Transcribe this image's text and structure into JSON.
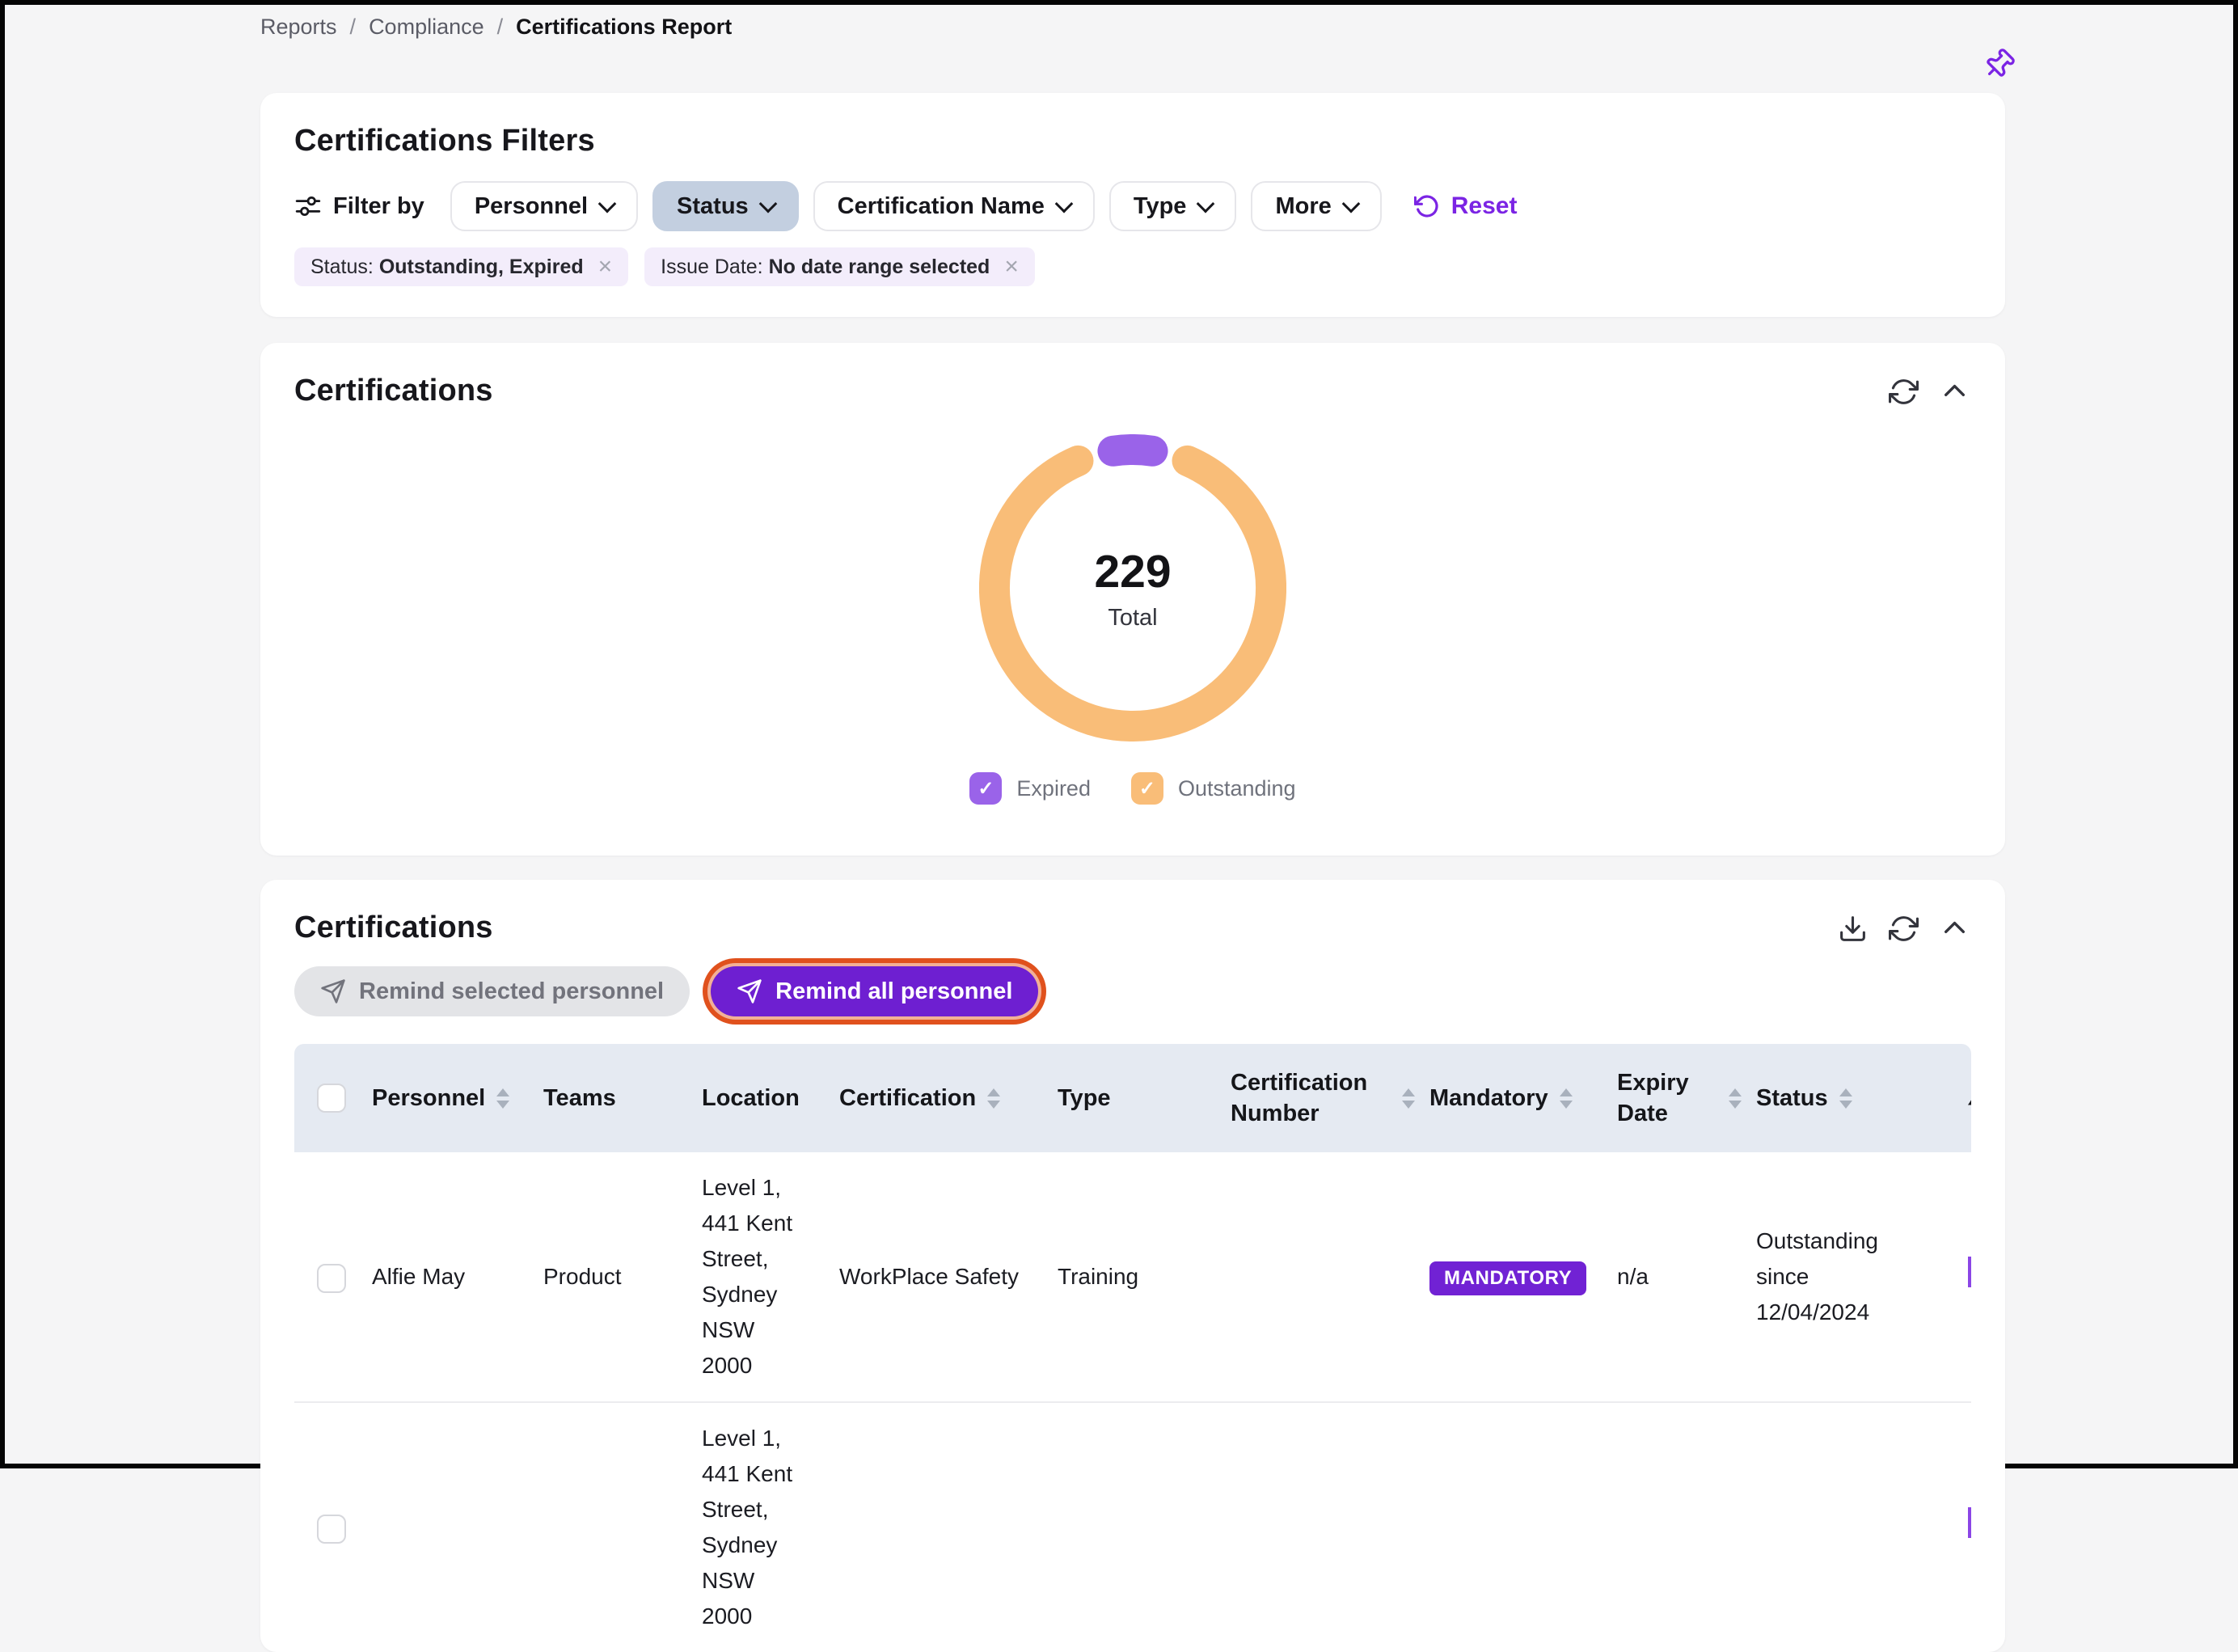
{
  "breadcrumb": {
    "separator": "/",
    "items": [
      {
        "label": "Reports"
      },
      {
        "label": "Compliance"
      },
      {
        "label": "Certifications Report",
        "current": true
      }
    ]
  },
  "filters_card": {
    "title": "Certifications Filters",
    "filter_by_label": "Filter by",
    "buttons": [
      {
        "label": "Personnel",
        "active": false
      },
      {
        "label": "Status",
        "active": true
      },
      {
        "label": "Certification Name",
        "active": false
      },
      {
        "label": "Type",
        "active": false
      },
      {
        "label": "More",
        "active": false
      }
    ],
    "reset_label": "Reset",
    "chip_close_glyph": "×",
    "chips": [
      {
        "prefix": "Status: ",
        "value": "Outstanding, Expired"
      },
      {
        "prefix": "Issue Date: ",
        "value": "No date range selected"
      }
    ]
  },
  "chart_card": {
    "title": "Certifications"
  },
  "chart_data": {
    "type": "pie",
    "variant": "donut",
    "title": "Certifications",
    "center_value": "229",
    "center_label": "Total",
    "total": 229,
    "check_glyph": "✓",
    "legend_position": "bottom",
    "segments": [
      {
        "label": "Expired",
        "color": "#9a63e9",
        "share": 0.05,
        "estimated_value": 11,
        "checked": true
      },
      {
        "label": "Outstanding",
        "color": "#f9bd78",
        "share": 0.95,
        "estimated_value": 218,
        "checked": true
      }
    ]
  },
  "table_card": {
    "title": "Certifications",
    "remind_selected_label": "Remind selected personnel",
    "remind_all_label": "Remind all personnel",
    "table": {
      "columns": [
        {
          "key": "select",
          "label": "",
          "sortable": false
        },
        {
          "key": "personnel",
          "label": "Personnel",
          "sortable": true
        },
        {
          "key": "teams",
          "label": "Teams",
          "sortable": false
        },
        {
          "key": "location",
          "label": "Location",
          "sortable": false
        },
        {
          "key": "certification",
          "label": "Certification",
          "sortable": true
        },
        {
          "key": "type",
          "label": "Type",
          "sortable": false
        },
        {
          "key": "certification_number",
          "label": "Certification Number",
          "sortable": true
        },
        {
          "key": "mandatory",
          "label": "Mandatory",
          "sortable": true
        },
        {
          "key": "expiry_date",
          "label": "Expiry Date",
          "sortable": true
        },
        {
          "key": "status",
          "label": "Status",
          "sortable": true
        },
        {
          "key": "actions",
          "label": "",
          "sortable": false,
          "clipped": true
        }
      ],
      "rows": [
        {
          "selected": false,
          "personnel": "Alfie May",
          "teams": "Product",
          "location": "Level 1, 441 Kent Street, Sydney NSW 2000",
          "certification": "WorkPlace Safety",
          "type": "Training",
          "certification_number": "",
          "mandatory": "MANDATORY",
          "expiry_date": "n/a",
          "status": "Outstanding since 12/04/2024"
        },
        {
          "selected": false,
          "personnel": "",
          "teams": "",
          "location": "Level 1, 441 Kent Street, Sydney NSW 2000",
          "certification": "",
          "type": "",
          "certification_number": "",
          "mandatory": "",
          "expiry_date": "",
          "status": ""
        }
      ]
    }
  },
  "colors": {
    "accent_purple": "#7b24e4",
    "badge_purple": "#7122d4",
    "button_purple": "#6e1fd1",
    "donut_purple": "#9a63e9",
    "donut_orange": "#f9bd78",
    "highlight_ring_orange": "#e0511d",
    "active_filter_bg": "#c3cfe0",
    "chip_bg": "#f3edfb",
    "table_header_bg": "#e5eaf2",
    "page_bg": "#f5f5f6"
  }
}
